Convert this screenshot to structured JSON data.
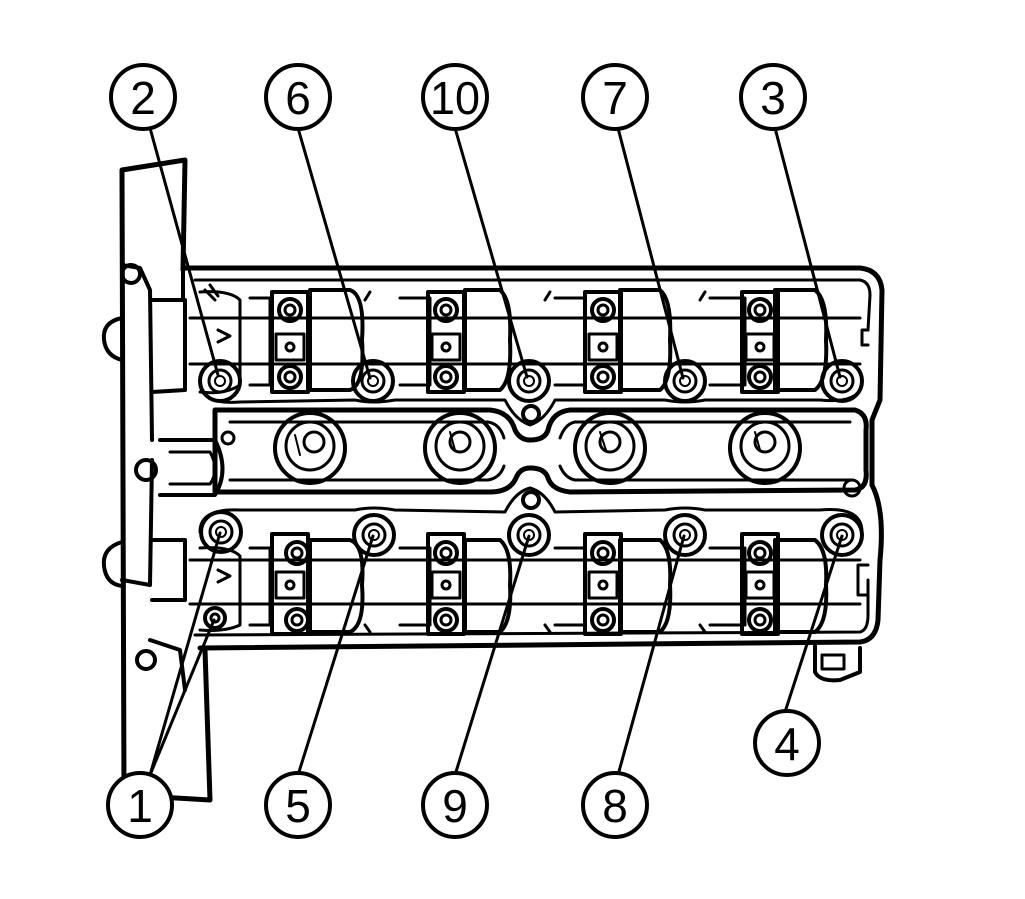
{
  "diagram": {
    "colors": {
      "ink": "#000000",
      "paper": "#ffffff"
    },
    "callouts": [
      {
        "id": "c2",
        "label": "2"
      },
      {
        "id": "c6",
        "label": "6"
      },
      {
        "id": "c10",
        "label": "10"
      },
      {
        "id": "c7",
        "label": "7"
      },
      {
        "id": "c3",
        "label": "3"
      },
      {
        "id": "c1",
        "label": "1"
      },
      {
        "id": "c5",
        "label": "5"
      },
      {
        "id": "c9",
        "label": "9"
      },
      {
        "id": "c8",
        "label": "8"
      },
      {
        "id": "c4",
        "label": "4"
      }
    ]
  }
}
